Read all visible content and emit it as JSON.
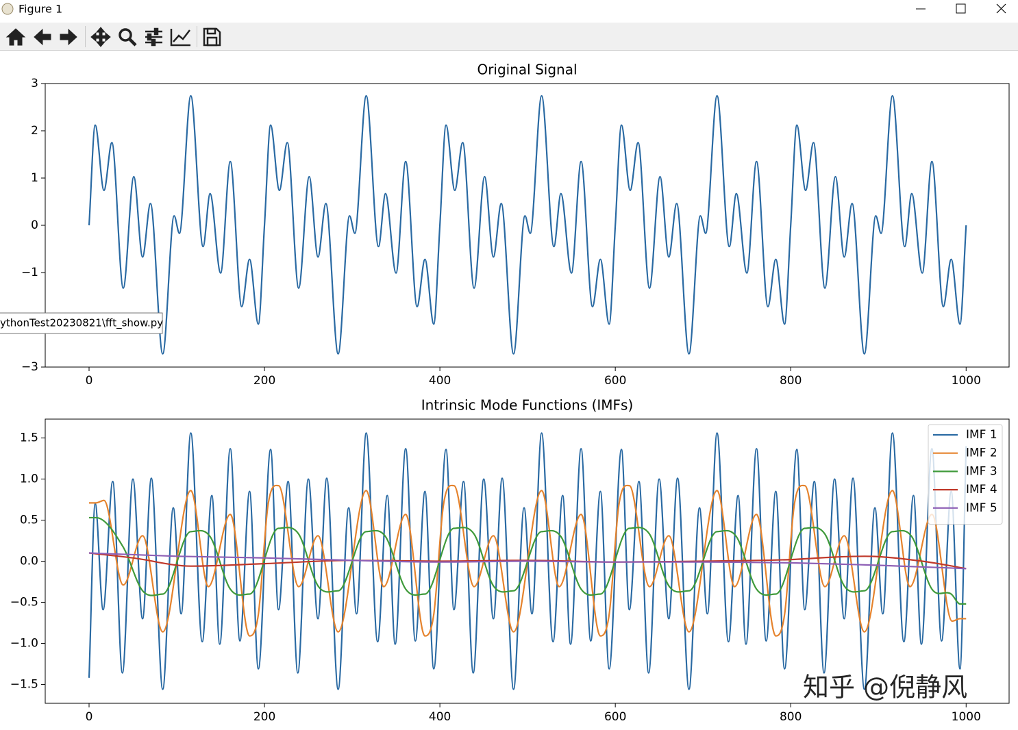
{
  "window": {
    "title": "Figure 1",
    "tooltip": "ythonTest20230821\\fft_show.py",
    "watermark": "知乎 @倪静风"
  },
  "chart_data": [
    {
      "type": "line",
      "title": "Original Signal",
      "xlim": [
        -50,
        1049
      ],
      "ylim": [
        -3,
        3
      ],
      "xticks": [
        0,
        200,
        400,
        600,
        800,
        1000
      ],
      "yticks": [
        {
          "value": -3,
          "label": "−3"
        },
        {
          "value": -2,
          "label": "−2"
        },
        {
          "value": -1,
          "label": "−1"
        },
        0,
        1,
        2,
        3
      ],
      "series": [
        {
          "name": "Original Signal",
          "color": "#2a6aa3",
          "x": [
            0,
            7,
            17,
            26,
            39,
            51,
            61,
            70,
            84,
            97,
            103,
            116,
            130,
            138,
            150,
            161,
            174,
            183,
            193,
            200,
            207,
            217,
            226,
            239,
            251,
            261,
            270,
            284,
            297,
            303,
            316,
            330,
            338,
            350,
            361,
            374,
            383,
            393,
            400,
            407,
            417,
            426,
            439,
            451,
            461,
            470,
            484,
            497,
            503,
            516,
            530,
            538,
            550,
            561,
            574,
            583,
            593,
            600,
            607,
            617,
            626,
            639,
            651,
            661,
            670,
            684,
            697,
            703,
            716,
            730,
            738,
            750,
            761,
            774,
            783,
            793,
            800,
            807,
            817,
            826,
            839,
            851,
            861,
            870,
            884,
            897,
            903,
            916,
            930,
            938,
            950,
            961,
            974,
            983,
            993,
            1000
          ],
          "values": [
            0,
            2.12,
            0.74,
            1.75,
            -1.33,
            1.03,
            -0.67,
            0.46,
            -2.72,
            0.2,
            -0.17,
            2.74,
            -0.45,
            0.67,
            -1.01,
            1.35,
            -1.72,
            -0.72,
            -2.09,
            0,
            2.12,
            0.74,
            1.75,
            -1.33,
            1.03,
            -0.67,
            0.46,
            -2.72,
            0.2,
            -0.17,
            2.74,
            -0.45,
            0.67,
            -1.01,
            1.35,
            -1.72,
            -0.72,
            -2.09,
            0,
            2.12,
            0.74,
            1.75,
            -1.33,
            1.03,
            -0.67,
            0.46,
            -2.72,
            0.2,
            -0.17,
            2.74,
            -0.45,
            0.67,
            -1.01,
            1.35,
            -1.72,
            -0.72,
            -2.09,
            0,
            2.12,
            0.74,
            1.75,
            -1.33,
            1.03,
            -0.67,
            0.46,
            -2.72,
            0.2,
            -0.17,
            2.74,
            -0.45,
            0.67,
            -1.01,
            1.35,
            -1.72,
            -0.72,
            -2.09,
            0,
            2.12,
            0.74,
            1.75,
            -1.33,
            1.03,
            -0.67,
            0.46,
            -2.72,
            0.2,
            -0.17,
            2.74,
            -0.45,
            0.67,
            -1.01,
            1.35,
            -1.72,
            -0.72,
            -2.09,
            0
          ]
        }
      ]
    },
    {
      "type": "line",
      "title": "Intrinsic Mode Functions (IMFs)",
      "xlim": [
        -50,
        1049
      ],
      "ylim": [
        -1.73,
        1.73
      ],
      "xticks": [
        0,
        200,
        400,
        600,
        800,
        1000
      ],
      "yticks": [
        {
          "value": -1.5,
          "label": "−1.5"
        },
        {
          "value": -1,
          "label": "−1.0"
        },
        {
          "value": -0.5,
          "label": "−0.5"
        },
        {
          "value": 0,
          "label": "0.0"
        },
        {
          "value": 0.5,
          "label": "0.5"
        },
        {
          "value": 1,
          "label": "1.0"
        },
        {
          "value": 1.5,
          "label": "1.5"
        }
      ],
      "legend": "upper right",
      "series": [
        {
          "name": "IMF 1",
          "color": "#2a6aa3",
          "x": [
            0,
            7,
            16,
            27,
            38,
            50,
            61,
            71,
            84,
            96,
            105,
            116,
            129,
            140,
            149,
            161,
            172,
            183,
            193,
            207,
            216,
            227,
            238,
            250,
            261,
            271,
            284,
            296,
            305,
            316,
            329,
            340,
            349,
            361,
            372,
            383,
            393,
            407,
            416,
            427,
            438,
            450,
            461,
            471,
            484,
            496,
            505,
            516,
            529,
            540,
            549,
            561,
            572,
            583,
            593,
            607,
            616,
            627,
            638,
            650,
            661,
            671,
            684,
            696,
            705,
            716,
            729,
            740,
            749,
            761,
            772,
            783,
            793,
            807,
            816,
            827,
            838,
            850,
            861,
            871,
            884,
            896,
            905,
            916,
            929,
            940,
            949,
            961,
            972,
            983,
            993,
            1000
          ],
          "values": [
            -1.42,
            0.7,
            -0.59,
            0.97,
            -1.36,
            1,
            -0.7,
            1.01,
            -1.56,
            0.65,
            -0.64,
            1.56,
            -0.98,
            0.8,
            -1.01,
            1.37,
            -0.97,
            0.85,
            -1.31,
            1.36,
            -0.59,
            0.97,
            -1.36,
            1,
            -0.7,
            1.01,
            -1.56,
            0.65,
            -0.64,
            1.56,
            -0.98,
            0.8,
            -1.01,
            1.37,
            -0.97,
            0.85,
            -1.31,
            1.36,
            -0.59,
            0.97,
            -1.36,
            1,
            -0.7,
            1.01,
            -1.56,
            0.65,
            -0.64,
            1.56,
            -0.98,
            0.8,
            -1.01,
            1.37,
            -0.97,
            0.85,
            -1.31,
            1.36,
            -0.59,
            0.97,
            -1.36,
            1,
            -0.7,
            1.01,
            -1.56,
            0.65,
            -0.64,
            1.56,
            -0.98,
            0.8,
            -1.01,
            1.37,
            -0.97,
            0.85,
            -1.31,
            1.36,
            -0.59,
            0.97,
            -1.36,
            1,
            -0.7,
            1.01,
            -1.56,
            0.65,
            -0.64,
            1.56,
            -0.98,
            0.8,
            -1.01,
            1.37,
            -0.97,
            0.85,
            -1.31,
            1.4
          ]
        },
        {
          "name": "IMF 2",
          "color": "#e5832d",
          "x": [
            0,
            8,
            17,
            39,
            61,
            84,
            116,
            136,
            161,
            183,
            193,
            204,
            216,
            239,
            261,
            284,
            316,
            336,
            361,
            383,
            393,
            404,
            416,
            439,
            461,
            484,
            516,
            536,
            561,
            583,
            593,
            604,
            616,
            639,
            661,
            684,
            716,
            736,
            761,
            783,
            793,
            804,
            816,
            839,
            861,
            884,
            916,
            936,
            961,
            984,
            993,
            1000
          ],
          "values": [
            0.71,
            0.71,
            0.74,
            -0.29,
            0.31,
            -0.86,
            0.86,
            -0.31,
            0.57,
            -0.91,
            -0.65,
            0.68,
            0.92,
            -0.31,
            0.31,
            -0.86,
            0.86,
            -0.31,
            0.57,
            -0.91,
            -0.65,
            0.68,
            0.92,
            -0.31,
            0.31,
            -0.86,
            0.86,
            -0.31,
            0.57,
            -0.91,
            -0.65,
            0.68,
            0.92,
            -0.31,
            0.31,
            -0.86,
            0.86,
            -0.31,
            0.57,
            -0.91,
            -0.65,
            0.68,
            0.92,
            -0.31,
            0.31,
            -0.86,
            0.86,
            -0.31,
            0.57,
            -0.73,
            -0.7,
            -0.7
          ]
        },
        {
          "name": "IMF 3",
          "color": "#3f9a3a",
          "x": [
            0,
            8,
            39,
            61,
            84,
            116,
            138,
            161,
            183,
            216,
            239,
            261,
            284,
            316,
            338,
            361,
            383,
            416,
            439,
            461,
            484,
            516,
            538,
            561,
            583,
            616,
            639,
            661,
            684,
            716,
            738,
            761,
            783,
            816,
            839,
            861,
            884,
            916,
            938,
            961,
            983,
            993,
            1000
          ],
          "values": [
            0.53,
            0.53,
            0.17,
            -0.36,
            -0.4,
            0.36,
            0.3,
            -0.34,
            -0.4,
            0.4,
            0.33,
            -0.3,
            -0.36,
            0.36,
            0.3,
            -0.34,
            -0.4,
            0.4,
            0.33,
            -0.3,
            -0.36,
            0.36,
            0.3,
            -0.34,
            -0.4,
            0.4,
            0.33,
            -0.3,
            -0.36,
            0.36,
            0.3,
            -0.34,
            -0.4,
            0.4,
            0.33,
            -0.3,
            -0.36,
            0.36,
            0.3,
            -0.34,
            -0.4,
            -0.52,
            -0.52
          ]
        },
        {
          "name": "IMF 4",
          "color": "#c0392b",
          "x": [
            0,
            50,
            116,
            200,
            300,
            400,
            500,
            600,
            700,
            800,
            850,
            884,
            950,
            1000
          ],
          "values": [
            0.1,
            0.04,
            -0.06,
            -0.03,
            0.01,
            0,
            0.01,
            -0.01,
            0,
            0.02,
            0.05,
            0.06,
            0,
            -0.09
          ]
        },
        {
          "name": "IMF 5",
          "color": "#8e5fb5",
          "x": [
            0,
            100,
            200,
            300,
            400,
            500,
            600,
            700,
            800,
            900,
            1000
          ],
          "values": [
            0.1,
            0.06,
            0.04,
            0.01,
            -0.01,
            0,
            -0.01,
            -0.01,
            -0.02,
            -0.05,
            -0.09
          ]
        }
      ]
    }
  ]
}
